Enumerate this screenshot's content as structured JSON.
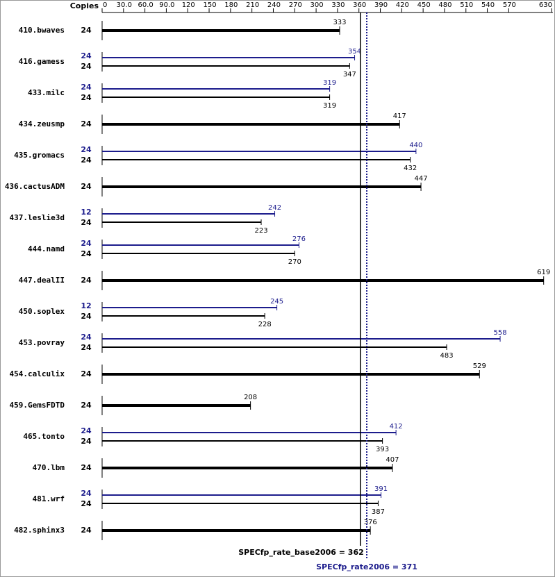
{
  "chart_data": {
    "type": "bar",
    "axis_title": "Copies",
    "categories": [
      "410.bwaves",
      "416.gamess",
      "433.milc",
      "434.zeusmp",
      "435.gromacs",
      "436.cactusADM",
      "437.leslie3d",
      "444.namd",
      "447.dealII",
      "450.soplex",
      "453.povray",
      "454.calculix",
      "459.GemsFDTD",
      "465.tonto",
      "470.lbm",
      "481.wrf",
      "482.sphinx3"
    ],
    "series": [
      {
        "color": "#1c1c8c",
        "copies": [
          null,
          24,
          24,
          null,
          24,
          null,
          12,
          24,
          null,
          12,
          24,
          null,
          null,
          24,
          null,
          24,
          null
        ],
        "values": [
          null,
          354,
          319,
          null,
          440,
          null,
          242,
          276,
          null,
          245,
          558,
          null,
          null,
          412,
          null,
          391,
          null
        ]
      },
      {
        "color": "#000000",
        "copies": [
          24,
          24,
          24,
          24,
          24,
          24,
          24,
          24,
          24,
          24,
          24,
          24,
          24,
          24,
          24,
          24,
          24
        ],
        "values": [
          333,
          347,
          319,
          417,
          432,
          447,
          223,
          270,
          619,
          228,
          483,
          529,
          208,
          393,
          407,
          387,
          376
        ]
      }
    ],
    "xlim": [
      0,
      630
    ],
    "xticks": [
      0,
      {
        "value": 30,
        "label": "30.0"
      },
      {
        "value": 60,
        "label": "60.0"
      },
      {
        "value": 90,
        "label": "90.0"
      },
      120,
      150,
      180,
      210,
      240,
      270,
      300,
      330,
      360,
      390,
      420,
      450,
      480,
      510,
      540,
      570,
      630
    ],
    "reference_lines": [
      {
        "label": "SPECfp_rate_base2006 = 362",
        "value": 362,
        "color": "#000000",
        "style": "solid"
      },
      {
        "label": "SPECfp_rate2006 = 371",
        "value": 371,
        "color": "#1c1c8c",
        "style": "dotted"
      }
    ]
  }
}
